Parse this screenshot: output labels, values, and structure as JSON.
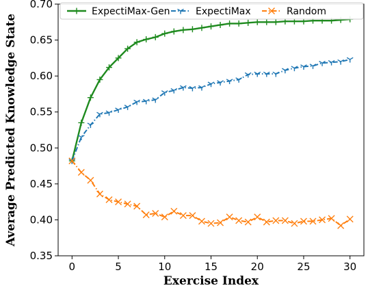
{
  "chart_data": {
    "type": "line",
    "xlabel": "Exercise Index",
    "ylabel": "Average Predicted Knowledge State",
    "xlim": [
      -1.5,
      31.5
    ],
    "ylim": [
      0.35,
      0.7
    ],
    "xticks": [
      0,
      5,
      10,
      15,
      20,
      25,
      30
    ],
    "yticks": [
      0.35,
      0.4,
      0.45,
      0.5,
      0.55,
      0.6,
      0.65,
      0.7
    ],
    "ytick_labels": [
      "0.35",
      "0.40",
      "0.45",
      "0.50",
      "0.55",
      "0.60",
      "0.65",
      "0.70"
    ],
    "grid": false,
    "legend_position": "top",
    "x": [
      0,
      1,
      2,
      3,
      4,
      5,
      6,
      7,
      8,
      9,
      10,
      11,
      12,
      13,
      14,
      15,
      16,
      17,
      18,
      19,
      20,
      21,
      22,
      23,
      24,
      25,
      26,
      27,
      28,
      29,
      30
    ],
    "series": [
      {
        "name": "ExpectiMax-Gen",
        "color": "#1e8a1e",
        "marker": "plus",
        "dash": "solid",
        "values": [
          0.482,
          0.535,
          0.57,
          0.595,
          0.612,
          0.625,
          0.638,
          0.647,
          0.651,
          0.654,
          0.659,
          0.662,
          0.664,
          0.665,
          0.667,
          0.669,
          0.671,
          0.673,
          0.673,
          0.674,
          0.675,
          0.675,
          0.675,
          0.676,
          0.676,
          0.676,
          0.677,
          0.677,
          0.677,
          0.678,
          0.679
        ]
      },
      {
        "name": "ExpectiMax",
        "color": "#1f77b4",
        "marker": "tri-down",
        "dash": "dashdot",
        "values": [
          0.482,
          0.515,
          0.532,
          0.547,
          0.549,
          0.553,
          0.557,
          0.564,
          0.565,
          0.567,
          0.577,
          0.58,
          0.584,
          0.583,
          0.584,
          0.589,
          0.591,
          0.593,
          0.595,
          0.602,
          0.603,
          0.603,
          0.603,
          0.608,
          0.611,
          0.613,
          0.614,
          0.618,
          0.619,
          0.62,
          0.623
        ]
      },
      {
        "name": "Random",
        "color": "#ff7f0e",
        "marker": "x",
        "dash": "dashdot",
        "values": [
          0.482,
          0.466,
          0.455,
          0.436,
          0.428,
          0.425,
          0.422,
          0.419,
          0.407,
          0.409,
          0.404,
          0.412,
          0.406,
          0.406,
          0.398,
          0.395,
          0.396,
          0.404,
          0.399,
          0.397,
          0.404,
          0.397,
          0.399,
          0.399,
          0.395,
          0.398,
          0.398,
          0.4,
          0.402,
          0.392,
          0.401
        ]
      }
    ]
  }
}
